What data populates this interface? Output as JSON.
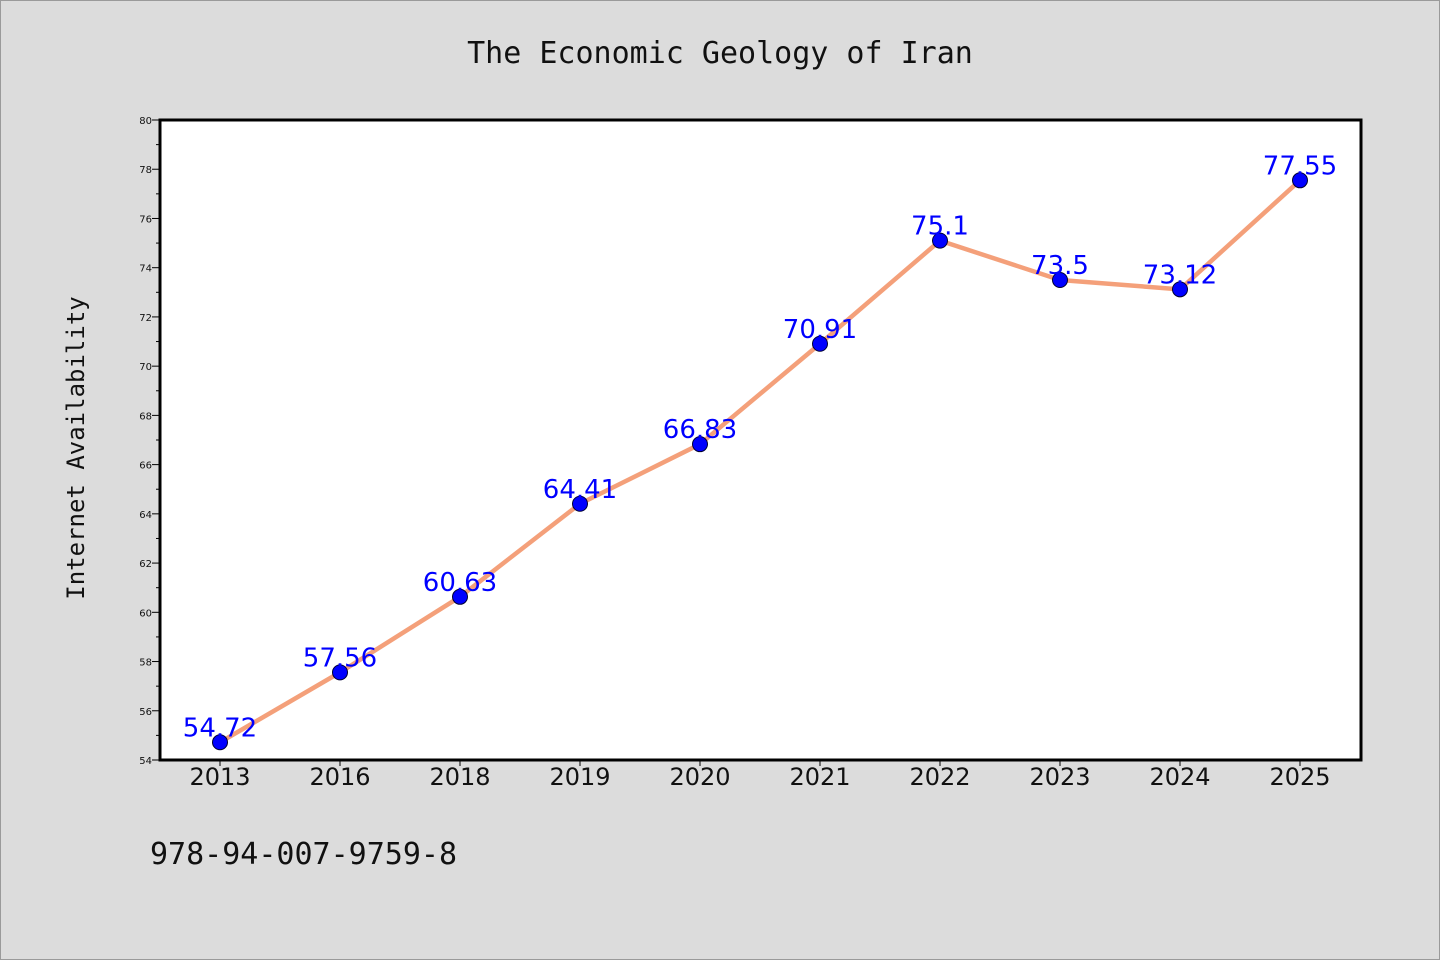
{
  "chart_data": {
    "type": "line",
    "title": "The Economic Geology of Iran",
    "ylabel": "Internet Availability",
    "xlabel": "",
    "categories": [
      "2013",
      "2016",
      "2018",
      "2019",
      "2020",
      "2021",
      "2022",
      "2023",
      "2024",
      "2025"
    ],
    "series": [
      {
        "values": [
          54.72,
          57.56,
          60.63,
          64.41,
          66.83,
          70.91,
          75.1,
          73.5,
          73.12,
          77.55
        ],
        "labels": [
          "54.72",
          "57.56",
          "60.63",
          "64.41",
          "66.83",
          "70.91",
          "75.1",
          "73.5",
          "73.12",
          "77.55"
        ]
      }
    ],
    "ylim": [
      54,
      80
    ],
    "yticks": [
      "54",
      "56",
      "58",
      "60",
      "62",
      "64",
      "66",
      "68",
      "70",
      "72",
      "74",
      "76",
      "78",
      "80"
    ],
    "grid": false,
    "legend": "none",
    "colors": {
      "line": "#f4a07a",
      "marker": "#0000ff",
      "label": "#0000ff",
      "background": "#dcdcdc",
      "plot_background": "#ffffff"
    }
  },
  "footer_text": "978-94-007-9759-8"
}
